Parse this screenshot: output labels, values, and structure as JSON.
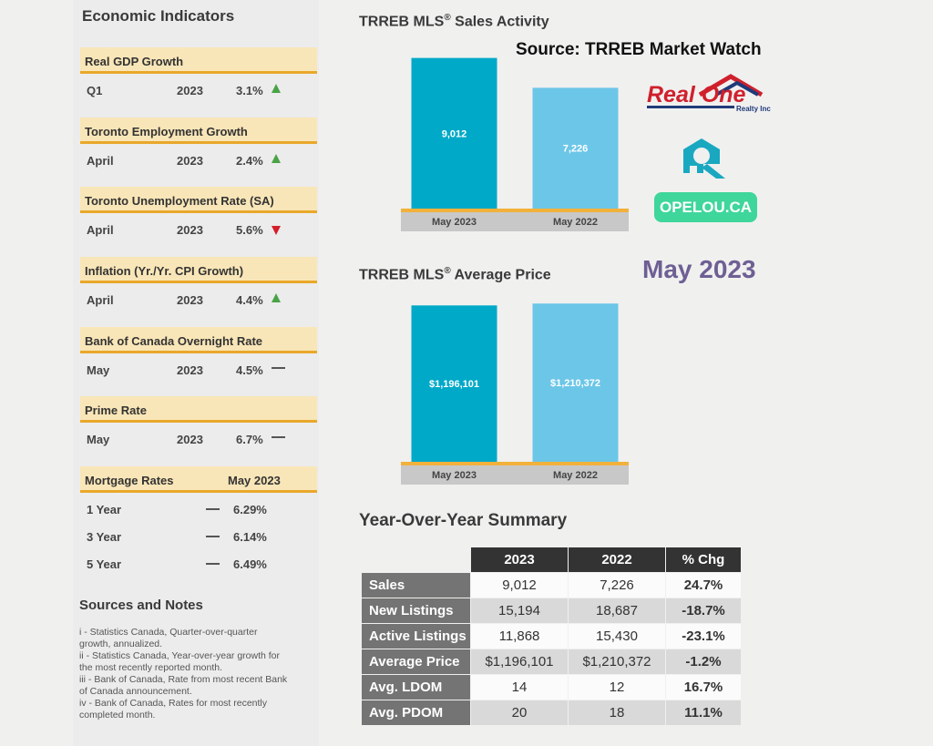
{
  "economic_indicators": {
    "title": "Economic Indicators",
    "items": [
      {
        "header": "Real GDP Growth",
        "period": "Q1",
        "year": "2023",
        "value": "3.1%",
        "trend": "up"
      },
      {
        "header": "Toronto Employment Growth",
        "period": "April",
        "year": "2023",
        "value": "2.4%",
        "trend": "up"
      },
      {
        "header": "Toronto Unemployment Rate (SA)",
        "period": "April",
        "year": "2023",
        "value": "5.6%",
        "trend": "down"
      },
      {
        "header": "Inflation (Yr./Yr. CPI Growth)",
        "period": "April",
        "year": "2023",
        "value": "4.4%",
        "trend": "up"
      },
      {
        "header": "Bank of Canada Overnight Rate",
        "period": "May",
        "year": "2023",
        "value": "4.5%",
        "trend": "flat"
      },
      {
        "header": "Prime Rate",
        "period": "May",
        "year": "2023",
        "value": "6.7%",
        "trend": "flat"
      }
    ],
    "mortgage": {
      "header": "Mortgage Rates",
      "header_date": "May 2023",
      "rows": [
        {
          "term": "1 Year",
          "value": "6.29%"
        },
        {
          "term": "3 Year",
          "value": "6.14%"
        },
        {
          "term": "5 Year",
          "value": "6.49%"
        }
      ]
    }
  },
  "notes": {
    "title": "Sources and Notes",
    "items": [
      "i - Statistics Canada, Quarter-over-quarter growth, annualized.",
      "ii - Statistics Canada, Year-over-year growth for the most recently reported month.",
      "iii - Bank of Canada, Rate from most recent Bank of Canada announcement.",
      "iv - Bank of Canada, Rates for most recently completed month."
    ]
  },
  "source_text": "Source: TRREB Market Watch",
  "month_label": "May 2023",
  "logos": {
    "realone_text": "Real One",
    "realone_subtext": "Realty Inc",
    "opelou": "OPELOU.CA",
    "colors": {
      "realone_red": "#d0202c",
      "realone_navy": "#1f3a7a",
      "q_teal": "#1aa8c0",
      "opelou_green": "#3fd69b"
    }
  },
  "chart_data": [
    {
      "type": "bar",
      "title": "TRREB MLS® Sales Activity",
      "categories": [
        "May 2023",
        "May 2022"
      ],
      "values": [
        9012,
        7226
      ],
      "labels": [
        "9,012",
        "7,226"
      ],
      "colors": [
        "#00a9c8",
        "#6cc6e8"
      ],
      "ylim": [
        0,
        9700
      ]
    },
    {
      "type": "bar",
      "title": "TRREB MLS® Average Price",
      "categories": [
        "May 2023",
        "May 2022"
      ],
      "values": [
        1196101,
        1210372
      ],
      "labels": [
        "$1,196,101",
        "$1,210,372"
      ],
      "colors": [
        "#00a9c8",
        "#6cc6e8"
      ],
      "ylim": [
        0,
        1240000
      ]
    },
    {
      "type": "table",
      "title": "Year-Over-Year Summary",
      "columns": [
        "",
        "2023",
        "2022",
        "% Chg"
      ],
      "rows": [
        {
          "label": "Sales",
          "v2023": "9,012",
          "v2022": "7,226",
          "chg": "24.7%"
        },
        {
          "label": "New Listings",
          "v2023": "15,194",
          "v2022": "18,687",
          "chg": "-18.7%"
        },
        {
          "label": "Active Listings",
          "v2023": "11,868",
          "v2022": "15,430",
          "chg": "-23.1%"
        },
        {
          "label": "Average Price",
          "v2023": "$1,196,101",
          "v2022": "$1,210,372",
          "chg": "-1.2%"
        },
        {
          "label": "Avg. LDOM",
          "v2023": "14",
          "v2022": "12",
          "chg": "16.7%"
        },
        {
          "label": "Avg. PDOM",
          "v2023": "20",
          "v2022": "18",
          "chg": "11.1%"
        }
      ]
    }
  ]
}
